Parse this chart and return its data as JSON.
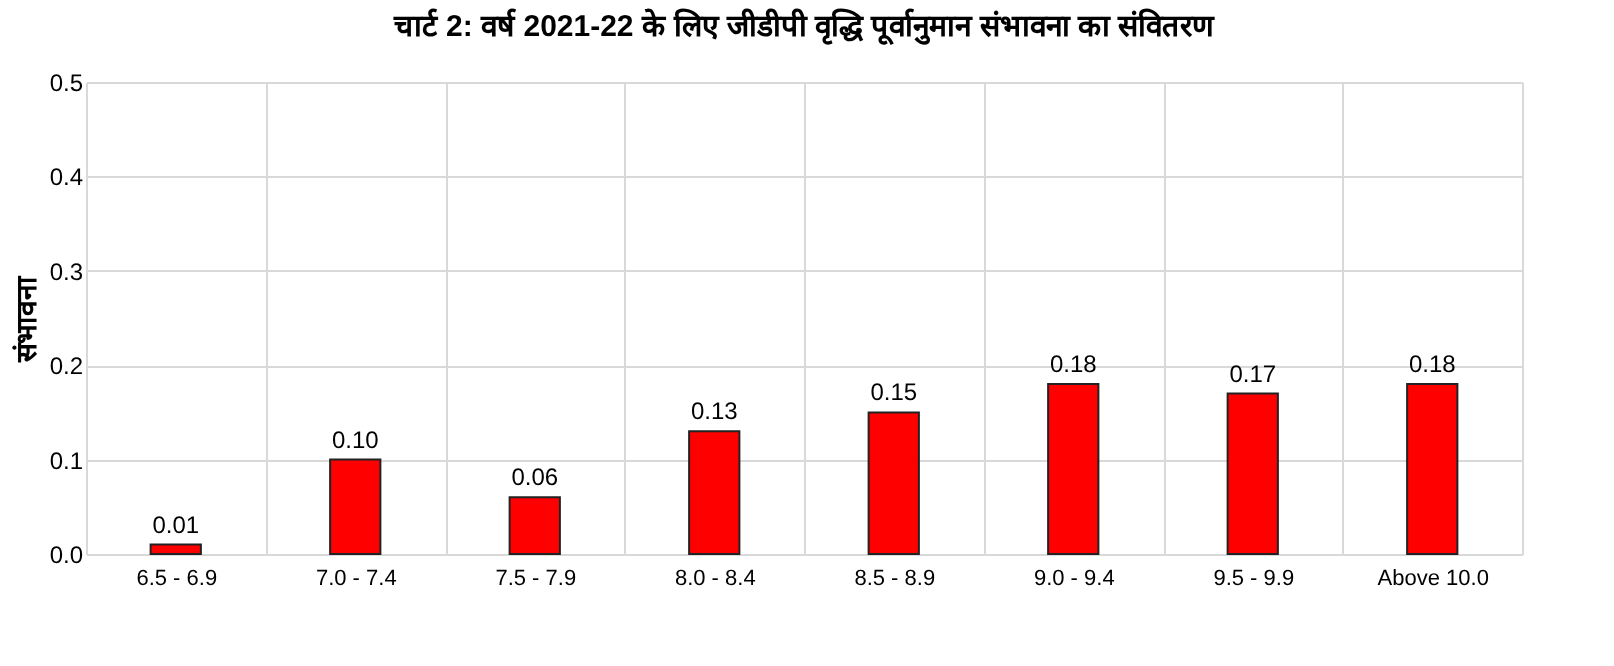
{
  "chart_data": {
    "type": "bar",
    "title": "चार्ट 2: वर्ष 2021-22 के लिए जीडीपी वृद्धि पूर्वानुमान संभावना का संवितरण",
    "ylabel": "संभावना",
    "categories": [
      "6.5 - 6.9",
      "7.0 - 7.4",
      "7.5 - 7.9",
      "8.0 - 8.4",
      "8.5 - 8.9",
      "9.0 - 9.4",
      "9.5 - 9.9",
      "Above 10.0"
    ],
    "values": [
      0.01,
      0.1,
      0.06,
      0.13,
      0.15,
      0.18,
      0.17,
      0.18
    ],
    "value_labels": [
      "0.01",
      "0.10",
      "0.06",
      "0.13",
      "0.15",
      "0.18",
      "0.17",
      "0.18"
    ],
    "color": "#ff0000",
    "ylim": [
      0,
      0.5
    ],
    "yticks": [
      {
        "value": 0,
        "label": "0.0"
      },
      {
        "value": 0.1,
        "label": "0.1"
      },
      {
        "value": 0.2,
        "label": "0.2"
      },
      {
        "value": 0.3,
        "label": "0.3"
      },
      {
        "value": 0.4,
        "label": "0.4"
      },
      {
        "value": 0.5,
        "label": "0.5"
      }
    ],
    "grid": true
  }
}
